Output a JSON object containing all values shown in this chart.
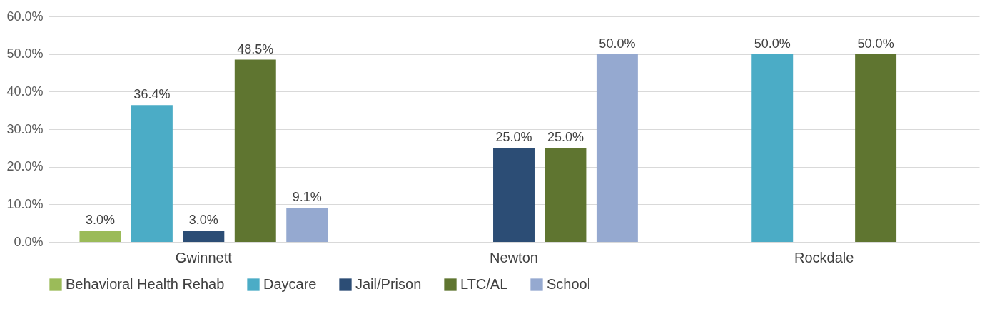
{
  "chart_data": {
    "type": "bar",
    "categories": [
      "Gwinnett",
      "Newton",
      "Rockdale"
    ],
    "series": [
      {
        "name": "Behavioral Health Rehab",
        "color": "#9bbb59",
        "values": [
          3.0,
          null,
          null
        ],
        "value_labels": [
          "3.0%",
          null,
          null
        ]
      },
      {
        "name": "Daycare",
        "color": "#4bacc6",
        "values": [
          36.4,
          null,
          50.0
        ],
        "value_labels": [
          "36.4%",
          null,
          "50.0%"
        ]
      },
      {
        "name": "Jail/Prison",
        "color": "#2c4d75",
        "values": [
          3.0,
          25.0,
          null
        ],
        "value_labels": [
          "3.0%",
          "25.0%",
          null
        ]
      },
      {
        "name": "LTC/AL",
        "color": "#5f7530",
        "values": [
          48.5,
          25.0,
          50.0
        ],
        "value_labels": [
          "48.5%",
          "25.0%",
          "50.0%"
        ]
      },
      {
        "name": "School",
        "color": "#95a9d0",
        "values": [
          9.1,
          50.0,
          null
        ],
        "value_labels": [
          "9.1%",
          "50.0%",
          null
        ]
      }
    ],
    "ylim": [
      0,
      60
    ],
    "yticks": [
      {
        "value": 0,
        "label": "0.0%"
      },
      {
        "value": 10,
        "label": "10.0%"
      },
      {
        "value": 20,
        "label": "20.0%"
      },
      {
        "value": 30,
        "label": "30.0%"
      },
      {
        "value": 40,
        "label": "40.0%"
      },
      {
        "value": 50,
        "label": "50.0%"
      },
      {
        "value": 60,
        "label": "60.0%"
      }
    ],
    "grid": "y",
    "legend": "bottom"
  }
}
